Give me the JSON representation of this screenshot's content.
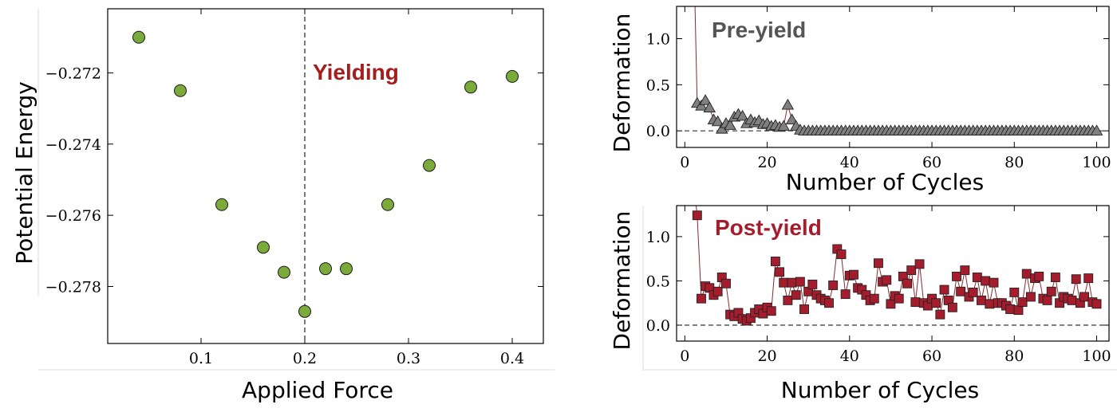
{
  "chart_data": [
    {
      "id": "energy",
      "type": "scatter",
      "title": "",
      "xlabel": "Applied Force",
      "ylabel": "Potential Energy",
      "xlim": [
        0.01,
        0.43
      ],
      "ylim": [
        -0.2796,
        -0.2702
      ],
      "xticks": [
        0.1,
        0.2,
        0.3,
        0.4
      ],
      "xtick_labels": [
        "0.1",
        "0.2",
        "0.3",
        "0.4"
      ],
      "yticks": [
        -0.272,
        -0.274,
        -0.276,
        -0.278
      ],
      "ytick_labels": [
        "−0.272",
        "−0.274",
        "−0.276",
        "−0.278"
      ],
      "x": [
        0.04,
        0.08,
        0.12,
        0.16,
        0.18,
        0.2,
        0.22,
        0.24,
        0.28,
        0.32,
        0.36,
        0.4
      ],
      "y": [
        -0.271,
        -0.2725,
        -0.2757,
        -0.2769,
        -0.2776,
        -0.2787,
        -0.2775,
        -0.2775,
        -0.2757,
        -0.2746,
        -0.2724,
        -0.2721
      ],
      "marker_color": "#7aab3a",
      "vline": 0.2,
      "annotation": {
        "text": "Yielding",
        "color": "#a51d1d"
      }
    },
    {
      "id": "pre",
      "type": "line",
      "xlabel": "Number of Cycles",
      "ylabel": "Deformation",
      "xlim": [
        -2,
        103
      ],
      "ylim": [
        -0.18,
        1.35
      ],
      "xticks": [
        0,
        20,
        40,
        60,
        80,
        100
      ],
      "xtick_labels": [
        "0",
        "20",
        "40",
        "60",
        "80",
        "100"
      ],
      "yticks": [
        0.0,
        0.5,
        1.0
      ],
      "ytick_labels": [
        "0.0",
        "0.5",
        "1.0"
      ],
      "series": [
        {
          "name": "Pre-yield",
          "marker": "triangle",
          "color": "#808080",
          "line_color": "#8a2a2a",
          "start_value": 1.5,
          "x": [
            3,
            4,
            5,
            6,
            7,
            8,
            9,
            10,
            11,
            12,
            13,
            14,
            15,
            16,
            17,
            18,
            19,
            20,
            21,
            22,
            23,
            24,
            25,
            26,
            27,
            28,
            29,
            30,
            31,
            32,
            33,
            34,
            35,
            36,
            37,
            38,
            39,
            40,
            41,
            42,
            43,
            44,
            45,
            46,
            47,
            48,
            49,
            50,
            51,
            52,
            53,
            54,
            55,
            56,
            57,
            58,
            59,
            60,
            61,
            62,
            63,
            64,
            65,
            66,
            67,
            68,
            69,
            70,
            71,
            72,
            73,
            74,
            75,
            76,
            77,
            78,
            79,
            80,
            81,
            82,
            83,
            84,
            85,
            86,
            87,
            88,
            89,
            90,
            91,
            92,
            93,
            94,
            95,
            96,
            97,
            98,
            99,
            100
          ],
          "y": [
            0.3,
            0.27,
            0.33,
            0.25,
            0.12,
            0.1,
            0.02,
            0.08,
            0.06,
            0.15,
            0.18,
            0.16,
            0.08,
            0.12,
            0.09,
            0.11,
            0.07,
            0.08,
            0.05,
            0.06,
            0.04,
            0.05,
            0.28,
            0.12,
            0.05,
            0.01,
            0.0,
            0.0,
            0.0,
            0.0,
            0.0,
            0.0,
            0.0,
            0.0,
            0.0,
            0.0,
            0.0,
            0.0,
            0.0,
            0.0,
            0.0,
            0.0,
            0.0,
            0.0,
            0.0,
            0.0,
            0.0,
            0.0,
            0.0,
            0.0,
            0.0,
            0.0,
            0.0,
            0.0,
            0.0,
            0.0,
            0.0,
            0.0,
            0.0,
            0.0,
            0.0,
            0.0,
            0.0,
            0.0,
            0.0,
            0.0,
            0.0,
            0.0,
            0.0,
            0.0,
            0.0,
            0.0,
            0.0,
            0.0,
            0.0,
            0.0,
            0.0,
            0.0,
            0.0,
            0.0,
            0.0,
            0.0,
            0.0,
            0.0,
            0.0,
            0.0,
            0.0,
            0.0,
            0.0,
            0.0,
            0.0,
            0.0,
            0.0,
            0.0,
            0.0,
            0.0,
            0.0,
            0.0
          ]
        }
      ],
      "hline": 0.0,
      "annotation": {
        "text": "Pre-yield",
        "color": "#555555"
      }
    },
    {
      "id": "post",
      "type": "line",
      "xlabel": "Number of Cycles",
      "ylabel": "Deformation",
      "xlim": [
        -2,
        103
      ],
      "ylim": [
        -0.18,
        1.35
      ],
      "xticks": [
        0,
        20,
        40,
        60,
        80,
        100
      ],
      "xtick_labels": [
        "0",
        "20",
        "40",
        "60",
        "80",
        "100"
      ],
      "yticks": [
        0.0,
        0.5,
        1.0
      ],
      "ytick_labels": [
        "0.0",
        "0.5",
        "1.0"
      ],
      "series": [
        {
          "name": "Post-yield",
          "marker": "square",
          "color": "#a51d2d",
          "line_color": "#8a2a2a",
          "start_value": 1.5,
          "x": [
            3,
            4,
            5,
            6,
            7,
            8,
            9,
            10,
            11,
            12,
            13,
            14,
            15,
            16,
            17,
            18,
            19,
            20,
            21,
            22,
            23,
            24,
            25,
            26,
            27,
            28,
            29,
            30,
            31,
            32,
            33,
            34,
            35,
            36,
            37,
            38,
            39,
            40,
            41,
            42,
            43,
            44,
            45,
            46,
            47,
            48,
            49,
            50,
            51,
            52,
            53,
            54,
            55,
            56,
            57,
            58,
            59,
            60,
            61,
            62,
            63,
            64,
            65,
            66,
            67,
            68,
            69,
            70,
            71,
            72,
            73,
            74,
            75,
            76,
            77,
            78,
            79,
            80,
            81,
            82,
            83,
            84,
            85,
            86,
            87,
            88,
            89,
            90,
            91,
            92,
            93,
            94,
            95,
            96,
            97,
            98,
            99,
            100
          ],
          "y": [
            1.24,
            0.3,
            0.44,
            0.42,
            0.34,
            0.38,
            0.54,
            0.47,
            0.12,
            0.1,
            0.14,
            0.07,
            0.05,
            0.08,
            0.14,
            0.18,
            0.13,
            0.2,
            0.16,
            0.72,
            0.6,
            0.48,
            0.28,
            0.48,
            0.34,
            0.49,
            0.18,
            0.38,
            0.46,
            0.34,
            0.3,
            0.28,
            0.25,
            0.45,
            0.86,
            0.8,
            0.35,
            0.56,
            0.57,
            0.42,
            0.4,
            0.34,
            0.28,
            0.3,
            0.7,
            0.49,
            0.51,
            0.24,
            0.33,
            0.3,
            0.55,
            0.47,
            0.62,
            0.26,
            0.69,
            0.25,
            0.22,
            0.3,
            0.25,
            0.12,
            0.4,
            0.28,
            0.2,
            0.55,
            0.38,
            0.62,
            0.32,
            0.37,
            0.54,
            0.28,
            0.5,
            0.24,
            0.48,
            0.25,
            0.25,
            0.22,
            0.18,
            0.37,
            0.17,
            0.26,
            0.58,
            0.32,
            0.53,
            0.55,
            0.3,
            0.28,
            0.38,
            0.54,
            0.25,
            0.32,
            0.3,
            0.28,
            0.52,
            0.25,
            0.32,
            0.53,
            0.26,
            0.24
          ]
        }
      ],
      "hline": 0.0,
      "annotation": {
        "text": "Post-yield",
        "color": "#a51d2d"
      }
    }
  ]
}
